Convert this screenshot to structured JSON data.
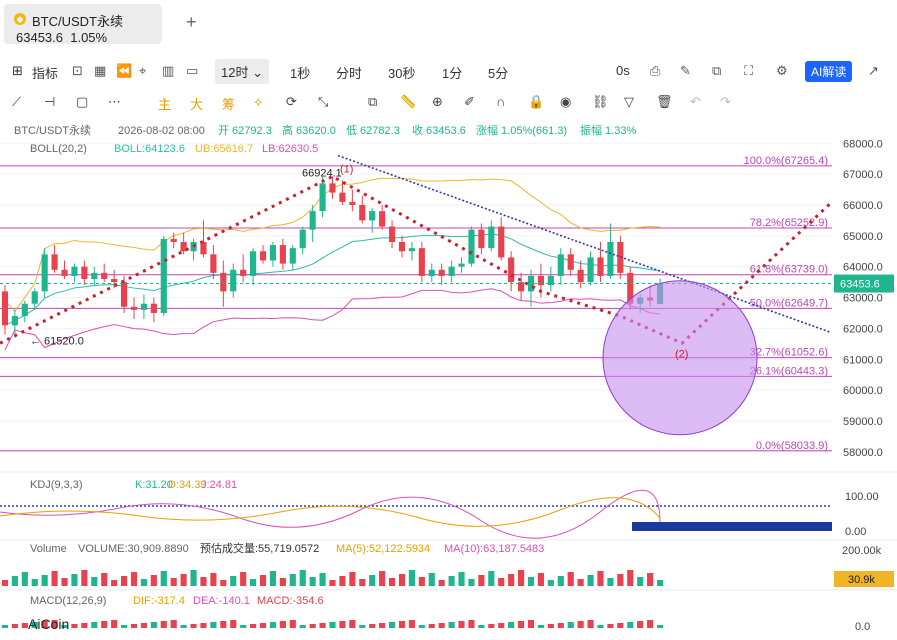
{
  "tab": {
    "title": "BTC/USDT永续",
    "price": "63453.6",
    "change": "1.05%",
    "add": "+"
  },
  "toolbar1": {
    "indicators": "指标",
    "intervals": [
      "12时",
      "1秒",
      "分时",
      "30秒",
      "1分",
      "5分"
    ],
    "time_zero": "0s",
    "ai": "AI解读"
  },
  "toolbar2": {
    "labels": [
      "主",
      "大",
      "筹"
    ]
  },
  "info": {
    "symbol": "BTC/USDT永续",
    "datetime": "2026-08-02 08:00",
    "o_label": "开",
    "open": "62792.3",
    "h_label": "高",
    "high": "63620.0",
    "l_label": "低",
    "low": "62782.3",
    "c_label": "收",
    "close": "63453.6",
    "chg_label": "涨幅",
    "chg": "1.05%(661.3)",
    "amp_label": "振幅",
    "amp": "1.33%"
  },
  "boll": {
    "name": "BOLL(20,2)",
    "boll": "BOLL:64123.6",
    "ub": "UB:65616.7",
    "lb": "LB:62630.5"
  },
  "kdj": {
    "name": "KDJ(9,3,3)",
    "k": "K:31.20",
    "d": "D:34.39",
    "j": "J:24.81"
  },
  "volume": {
    "name": "Volume",
    "vol": "VOLUME:30,909.8890",
    "est": "预估成交量:55,719.0572",
    "ma5": "MA(5):52,122.5934",
    "ma10": "MA(10):63,187.5483"
  },
  "macd": {
    "name": "MACD(12,26,9)",
    "dif": "DIF:-317.4",
    "dea": "DEA:-140.1",
    "macd": "MACD:-354.6"
  },
  "watermark": "AiCoin",
  "colors": {
    "up": "#1fb58f",
    "down": "#e8424f",
    "fib": "#c044b8",
    "boll_mid": "#2fb9a9",
    "boll_up": "#f0b429",
    "boll_low": "#d94fb7",
    "circle": "#c690f0"
  },
  "chart_data": {
    "type": "candlestick",
    "y_axis_ticks": [
      "68000.0",
      "67000.0",
      "66000.0",
      "65000.0",
      "64000.0",
      "63000.0",
      "62000.0",
      "61000.0",
      "60000.0",
      "59000.0",
      "58000.0"
    ],
    "ylim": [
      57800,
      68300
    ],
    "current_price": "63453.6",
    "high_label": "66924.1",
    "low_label": "← 61520.0",
    "fib_levels": [
      {
        "label": "100.0%(67265.4)",
        "value": 67265.4
      },
      {
        "label": "78.2%(65252.9)",
        "value": 65252.9
      },
      {
        "label": "61.8%(63739.0)",
        "value": 63739.0
      },
      {
        "label": "50.0%(62649.7)",
        "value": 62649.7
      },
      {
        "label": "32.7%(61052.6)",
        "value": 61052.6
      },
      {
        "label": "26.1%(60443.3)",
        "value": 60443.3
      },
      {
        "label": "0.0%(58033.9)",
        "value": 58033.9
      }
    ],
    "wave_labels": [
      "(1)",
      "(2)"
    ],
    "candles": [
      [
        63200,
        63400,
        61800,
        62100
      ],
      [
        62100,
        62600,
        61700,
        62400
      ],
      [
        62400,
        62900,
        62200,
        62800
      ],
      [
        62800,
        63300,
        62600,
        63200
      ],
      [
        63200,
        64600,
        63000,
        64400
      ],
      [
        64400,
        64700,
        63800,
        63900
      ],
      [
        63900,
        64200,
        63600,
        63700
      ],
      [
        63700,
        64100,
        63500,
        64000
      ],
      [
        64000,
        64200,
        63400,
        63600
      ],
      [
        63600,
        64000,
        63400,
        63800
      ],
      [
        63800,
        64100,
        63500,
        63600
      ],
      [
        63600,
        63900,
        63300,
        63500
      ],
      [
        63500,
        63700,
        62500,
        62700
      ],
      [
        62700,
        63000,
        62300,
        62600
      ],
      [
        62600,
        63100,
        62300,
        62800
      ],
      [
        62800,
        63000,
        62200,
        62500
      ],
      [
        62500,
        65000,
        62400,
        64900
      ],
      [
        64900,
        65100,
        64600,
        64800
      ],
      [
        64800,
        65100,
        64400,
        64500
      ],
      [
        64500,
        64900,
        64200,
        64800
      ],
      [
        64800,
        65500,
        64300,
        64400
      ],
      [
        64400,
        64700,
        63600,
        63800
      ],
      [
        63800,
        64200,
        62700,
        63200
      ],
      [
        63200,
        64100,
        63000,
        63900
      ],
      [
        63900,
        64400,
        63500,
        63700
      ],
      [
        63700,
        64600,
        63400,
        64500
      ],
      [
        64500,
        64700,
        64100,
        64200
      ],
      [
        64200,
        64800,
        64000,
        64700
      ],
      [
        64700,
        64900,
        63900,
        64100
      ],
      [
        64100,
        64700,
        63900,
        64600
      ],
      [
        64600,
        65300,
        64400,
        65200
      ],
      [
        65200,
        66000,
        64800,
        65800
      ],
      [
        65800,
        66900,
        65600,
        66700
      ],
      [
        66700,
        66924,
        66200,
        66400
      ],
      [
        66400,
        66800,
        66000,
        66100
      ],
      [
        66100,
        66500,
        65800,
        66000
      ],
      [
        66000,
        66300,
        65400,
        65500
      ],
      [
        65500,
        65900,
        65100,
        65800
      ],
      [
        65800,
        66000,
        65200,
        65300
      ],
      [
        65300,
        65500,
        64600,
        64800
      ],
      [
        64800,
        65000,
        64300,
        64500
      ],
      [
        64500,
        64800,
        64200,
        64600
      ],
      [
        64600,
        64800,
        63500,
        63700
      ],
      [
        63700,
        64100,
        63500,
        63900
      ],
      [
        63900,
        64100,
        63400,
        63700
      ],
      [
        63700,
        64200,
        63500,
        64000
      ],
      [
        64000,
        64300,
        63800,
        64100
      ],
      [
        64100,
        65300,
        64000,
        65200
      ],
      [
        65200,
        65400,
        64400,
        64600
      ],
      [
        64600,
        65500,
        64500,
        65300
      ],
      [
        65300,
        65600,
        64200,
        64300
      ],
      [
        64300,
        64500,
        63200,
        63500
      ],
      [
        63500,
        63800,
        62900,
        63200
      ],
      [
        63200,
        63900,
        62700,
        63700
      ],
      [
        63700,
        64100,
        63000,
        63400
      ],
      [
        63400,
        64000,
        63200,
        63700
      ],
      [
        63700,
        64600,
        63400,
        64400
      ],
      [
        64400,
        64600,
        63700,
        63900
      ],
      [
        63900,
        64200,
        63300,
        63500
      ],
      [
        63500,
        64500,
        63400,
        64300
      ],
      [
        64300,
        64800,
        63500,
        63700
      ],
      [
        63700,
        65400,
        63600,
        64800
      ],
      [
        64800,
        65000,
        63600,
        63800
      ],
      [
        63800,
        64000,
        62600,
        62800
      ],
      [
        62800,
        63100,
        62500,
        63000
      ],
      [
        63000,
        63400,
        62700,
        62900
      ],
      [
        62792,
        63620,
        62782,
        63454
      ]
    ],
    "kdj_axis": [
      "100.00",
      "0.00"
    ],
    "volume_axis": "200.00k",
    "volume_current": "30.9k",
    "macd_axis": "0.0"
  }
}
